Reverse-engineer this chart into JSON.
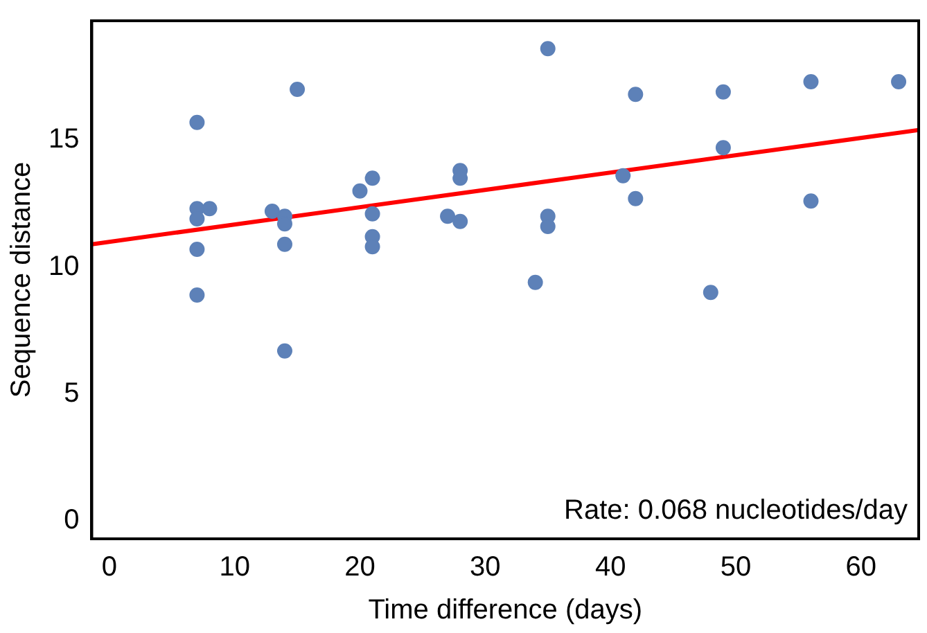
{
  "chart_data": {
    "type": "scatter",
    "xlabel": "Time difference (days)",
    "ylabel": "Sequence distance",
    "annotations": [
      "Rate: 0.068 nucleotides/day"
    ],
    "series": [
      {
        "type": "scatter",
        "color": "#5d81b8",
        "marker": "circle",
        "x": [
          7,
          15,
          7,
          8,
          7,
          7,
          7,
          13,
          14,
          14,
          14,
          14,
          20,
          21,
          21,
          21,
          21,
          27,
          28,
          28,
          28,
          35,
          42,
          49,
          56,
          63,
          49,
          41,
          42,
          56,
          35,
          35,
          34,
          48
        ],
        "values": [
          15.7,
          17.0,
          12.3,
          12.3,
          11.9,
          10.7,
          8.9,
          12.2,
          12.0,
          11.7,
          10.9,
          6.7,
          13.0,
          13.5,
          12.1,
          11.2,
          10.8,
          12.0,
          13.8,
          13.5,
          11.8,
          18.6,
          16.8,
          16.9,
          17.3,
          17.3,
          14.7,
          13.6,
          12.7,
          12.6,
          12.0,
          11.6,
          9.4,
          9.0
        ]
      },
      {
        "type": "line",
        "color": "#ff0000",
        "marker": "none",
        "x": [
          -1.4,
          64.6
        ],
        "values": [
          10.9,
          15.4
        ]
      }
    ],
    "xlim": [
      -1.4,
      64.6
    ],
    "ylim": [
      -0.7,
      19.7
    ],
    "xticks": [
      0,
      10,
      20,
      30,
      40,
      50,
      60
    ],
    "yticks": [
      0,
      5,
      10,
      15
    ],
    "grid": false,
    "legend": false
  }
}
